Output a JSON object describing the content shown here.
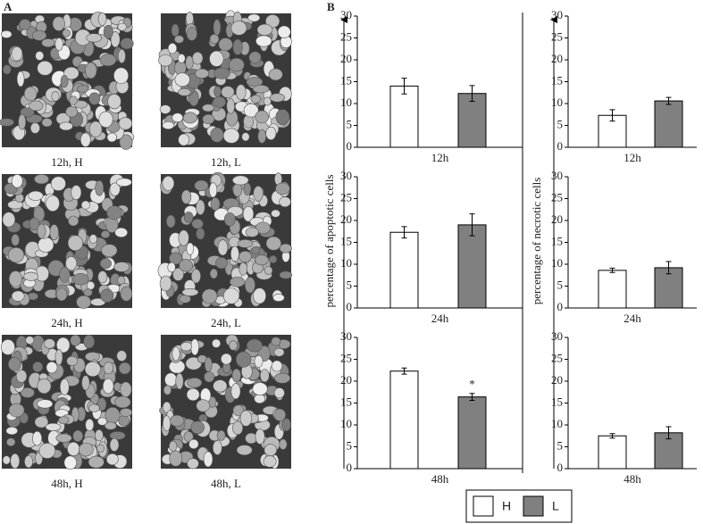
{
  "figure": {
    "panel_a_label": "A",
    "panel_b_label": "B",
    "images": [
      "12h, H",
      "12h, L",
      "24h, H",
      "24h, L",
      "48h, H",
      "48h, L"
    ],
    "legend": [
      {
        "name": "H",
        "color": "#ffffff"
      },
      {
        "name": "L",
        "color": "#808080"
      }
    ]
  },
  "chart_data": [
    {
      "type": "bar",
      "ylabel": "percentage of apoptotic cells",
      "xlabel": "12h",
      "values": [
        14,
        12.3
      ],
      "errors": [
        1.8,
        1.8
      ],
      "ylim": [
        0,
        30
      ],
      "yticks": [
        0,
        5,
        10,
        15,
        20,
        25,
        30
      ]
    },
    {
      "type": "bar",
      "xlabel": "24h",
      "values": [
        17.3,
        19
      ],
      "errors": [
        1.3,
        2.5
      ],
      "ylim": [
        0,
        30
      ],
      "yticks": [
        0,
        5,
        10,
        15,
        20,
        25,
        30
      ]
    },
    {
      "type": "bar",
      "xlabel": "48h",
      "values": [
        22.3,
        16.4
      ],
      "errors": [
        0.7,
        0.8
      ],
      "annotation": "*",
      "ylim": [
        0,
        30
      ],
      "yticks": [
        0,
        5,
        10,
        15,
        20,
        25,
        30
      ]
    },
    {
      "type": "bar",
      "ylabel": "percentage of necrotic cells",
      "xlabel": "12h",
      "values": [
        7.3,
        10.6
      ],
      "errors": [
        1.3,
        0.8
      ],
      "ylim": [
        0,
        30
      ],
      "yticks": [
        0,
        5,
        10,
        15,
        20,
        25,
        30
      ]
    },
    {
      "type": "bar",
      "xlabel": "24h",
      "values": [
        8.6,
        9.2
      ],
      "errors": [
        0.5,
        1.4
      ],
      "ylim": [
        0,
        30
      ],
      "yticks": [
        0,
        5,
        10,
        15,
        20,
        25,
        30
      ]
    },
    {
      "type": "bar",
      "xlabel": "48h",
      "values": [
        7.5,
        8.2
      ],
      "errors": [
        0.5,
        1.4
      ],
      "ylim": [
        0,
        30
      ],
      "yticks": [
        0,
        5,
        10,
        15,
        20,
        25,
        30
      ]
    }
  ]
}
